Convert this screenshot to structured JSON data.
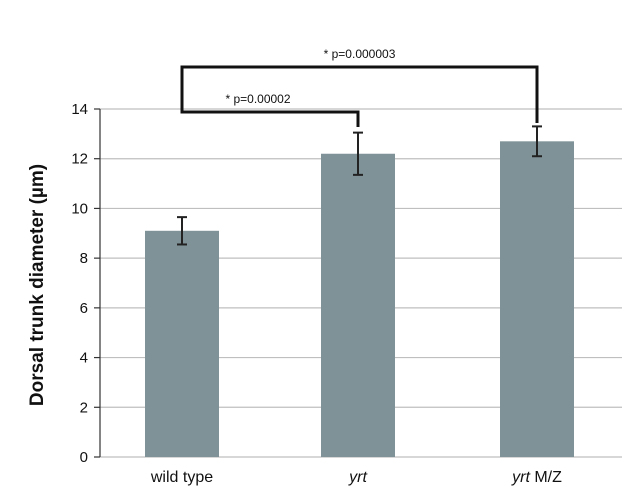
{
  "chart_data": {
    "type": "bar",
    "categories": [
      {
        "italic": "",
        "plain": "wild type"
      },
      {
        "italic": "yrt",
        "plain": ""
      },
      {
        "italic": "yrt",
        "plain": " M/Z"
      }
    ],
    "values": [
      9.1,
      12.2,
      12.7
    ],
    "errors": [
      0.55,
      0.85,
      0.6
    ],
    "ylabel": "Dorsal trunk diameter (µm)",
    "ylim": [
      0,
      14
    ],
    "yticks": [
      0,
      2,
      4,
      6,
      8,
      10,
      12,
      14
    ],
    "grid": true,
    "bar_color": "#7f9298",
    "grid_color": "#bfbfbf",
    "annotations": [
      {
        "from": 0,
        "to": 1,
        "label": "* p=0.00002"
      },
      {
        "from": 0,
        "to": 2,
        "label": "* p=0.000003"
      }
    ]
  }
}
